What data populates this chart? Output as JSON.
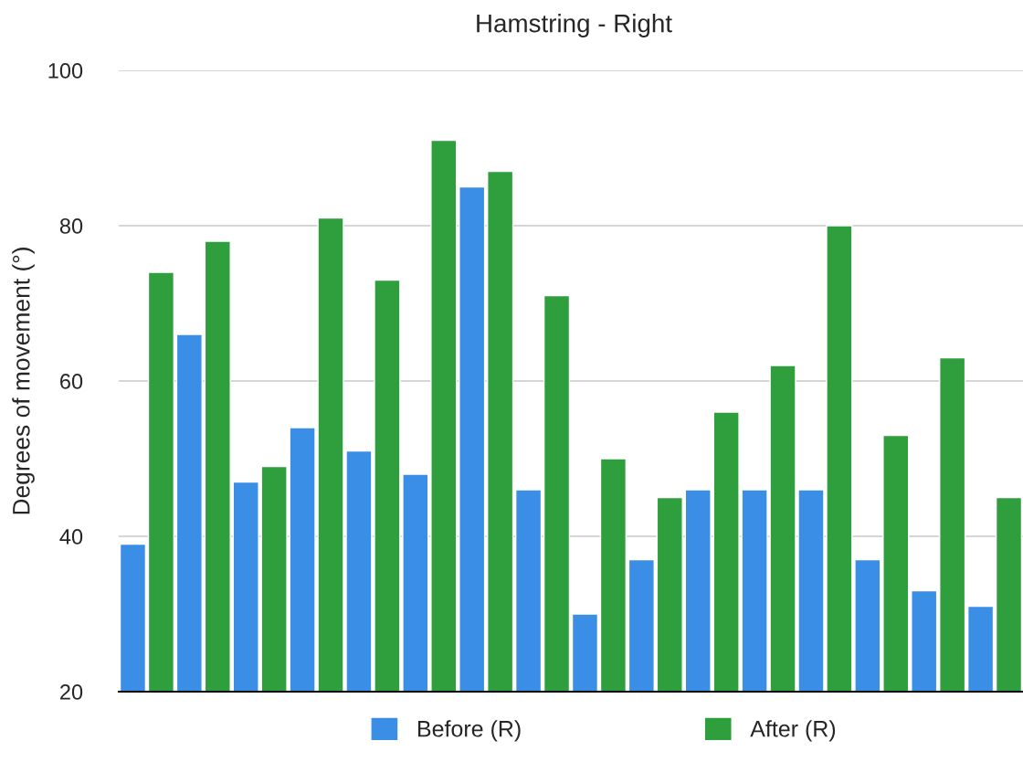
{
  "chart_data": {
    "type": "bar",
    "title": "Hamstring - Right",
    "ylabel": "Degrees of movement (°)",
    "categories": [
      null,
      null,
      null,
      null,
      null,
      null,
      null,
      null,
      null,
      null,
      null,
      null,
      null,
      null,
      null,
      null
    ],
    "series": [
      {
        "name": "Before (R)",
        "color": "#3b8ee6",
        "values": [
          39,
          66,
          47,
          54,
          51,
          48,
          85,
          46,
          30,
          37,
          46,
          46,
          46,
          37,
          33,
          31
        ]
      },
      {
        "name": "After (R)",
        "color": "#2f9e3c",
        "values": [
          74,
          78,
          49,
          81,
          73,
          91,
          87,
          71,
          50,
          45,
          56,
          62,
          80,
          53,
          63,
          45
        ]
      }
    ],
    "ylim": [
      20,
      100
    ],
    "yticks": [
      20,
      40,
      60,
      80,
      100
    ],
    "grid": "y",
    "legend": "bottom"
  }
}
